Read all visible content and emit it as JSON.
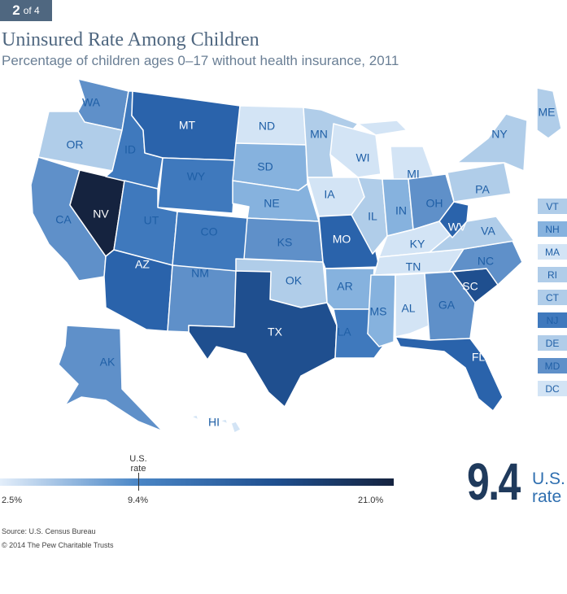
{
  "badge": {
    "current": "2",
    "of_label": "of 4"
  },
  "title": "Uninsured Rate Among Children",
  "subtitle": "Percentage of children ages 0–17 without health insurance, 2011",
  "colors": {
    "c1": "#d3e4f5",
    "c2": "#b0cde9",
    "c3": "#86b2de",
    "c4": "#5f90c9",
    "c5": "#3f79bd",
    "c6": "#2a63ab",
    "c7": "#1f4f8f",
    "c8": "#15233f",
    "dark_text": "#ffffff",
    "light_text": "#1f5fa6"
  },
  "states": [
    {
      "abbr": "WA",
      "shade": "c4"
    },
    {
      "abbr": "OR",
      "shade": "c2"
    },
    {
      "abbr": "CA",
      "shade": "c4"
    },
    {
      "abbr": "NV",
      "shade": "c8"
    },
    {
      "abbr": "ID",
      "shade": "c5"
    },
    {
      "abbr": "MT",
      "shade": "c6"
    },
    {
      "abbr": "WY",
      "shade": "c5"
    },
    {
      "abbr": "UT",
      "shade": "c5"
    },
    {
      "abbr": "AZ",
      "shade": "c6"
    },
    {
      "abbr": "CO",
      "shade": "c5"
    },
    {
      "abbr": "NM",
      "shade": "c4"
    },
    {
      "abbr": "ND",
      "shade": "c1"
    },
    {
      "abbr": "SD",
      "shade": "c3"
    },
    {
      "abbr": "NE",
      "shade": "c3"
    },
    {
      "abbr": "KS",
      "shade": "c4"
    },
    {
      "abbr": "OK",
      "shade": "c2"
    },
    {
      "abbr": "TX",
      "shade": "c7"
    },
    {
      "abbr": "MN",
      "shade": "c2"
    },
    {
      "abbr": "IA",
      "shade": "c1"
    },
    {
      "abbr": "MO",
      "shade": "c6"
    },
    {
      "abbr": "AR",
      "shade": "c3"
    },
    {
      "abbr": "LA",
      "shade": "c5"
    },
    {
      "abbr": "WI",
      "shade": "c1"
    },
    {
      "abbr": "IL",
      "shade": "c2"
    },
    {
      "abbr": "MI",
      "shade": "c1"
    },
    {
      "abbr": "IN",
      "shade": "c3"
    },
    {
      "abbr": "OH",
      "shade": "c4"
    },
    {
      "abbr": "KY",
      "shade": "c1"
    },
    {
      "abbr": "TN",
      "shade": "c1"
    },
    {
      "abbr": "MS",
      "shade": "c3"
    },
    {
      "abbr": "AL",
      "shade": "c1"
    },
    {
      "abbr": "GA",
      "shade": "c4"
    },
    {
      "abbr": "FL",
      "shade": "c6"
    },
    {
      "abbr": "SC",
      "shade": "c7"
    },
    {
      "abbr": "NC",
      "shade": "c4"
    },
    {
      "abbr": "VA",
      "shade": "c2"
    },
    {
      "abbr": "WV",
      "shade": "c6"
    },
    {
      "abbr": "PA",
      "shade": "c2"
    },
    {
      "abbr": "NY",
      "shade": "c2"
    },
    {
      "abbr": "ME",
      "shade": "c2"
    },
    {
      "abbr": "AK",
      "shade": "c4"
    },
    {
      "abbr": "HI",
      "shade": "c1"
    }
  ],
  "small_states": [
    {
      "abbr": "VT",
      "shade": "c2"
    },
    {
      "abbr": "NH",
      "shade": "c3"
    },
    {
      "abbr": "MA",
      "shade": "c1"
    },
    {
      "abbr": "RI",
      "shade": "c2"
    },
    {
      "abbr": "CT",
      "shade": "c2"
    },
    {
      "abbr": "NJ",
      "shade": "c5"
    },
    {
      "abbr": "DE",
      "shade": "c2"
    },
    {
      "abbr": "MD",
      "shade": "c4"
    },
    {
      "abbr": "DC",
      "shade": "c1"
    }
  ],
  "scale": {
    "min_label": "2.5%",
    "mid_label": "9.4%",
    "max_label": "21.0%",
    "marker_label_1": "U.S.",
    "marker_label_2": "rate"
  },
  "us_rate": {
    "value": "9.4",
    "label_1": "U.S.",
    "label_2": "rate"
  },
  "source": "Source: U.S. Census Bureau",
  "copyright": "© 2014 The Pew Charitable Trusts"
}
